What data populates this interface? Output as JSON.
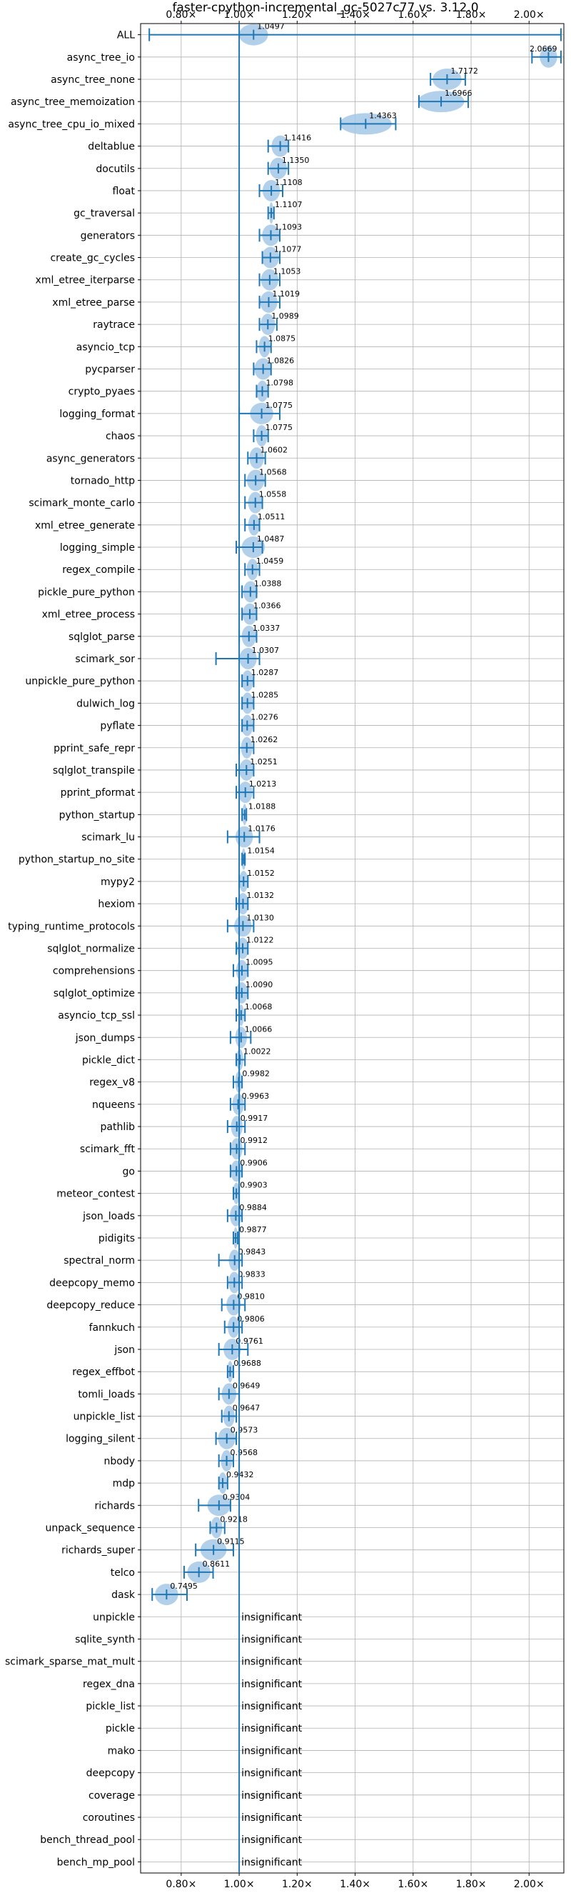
{
  "chart_data": {
    "type": "violin",
    "title": "faster-cpython-incremental_gc-5027c77 vs. 3.12.0",
    "xlabel": "",
    "ylabel": "",
    "xlim": [
      0.66,
      2.12
    ],
    "x_ticks": [
      0.8,
      1.0,
      1.2,
      1.4,
      1.6,
      1.8,
      2.0
    ],
    "x_tick_labels": [
      "0.80×",
      "1.00×",
      "1.20×",
      "1.40×",
      "1.60×",
      "1.80×",
      "2.00×"
    ],
    "reference_line": 1.0,
    "grid": true,
    "insignificant_label": "insignificant",
    "benchmarks": [
      {
        "name": "ALL",
        "value": 1.0497,
        "label": "1.0497",
        "low": 0.69,
        "high": 2.11,
        "spread": 0.05
      },
      {
        "name": "async_tree_io",
        "value": 2.0669,
        "label": "2.0669",
        "low": 2.01,
        "high": 2.11,
        "spread": 0.03
      },
      {
        "name": "async_tree_none",
        "value": 1.7172,
        "label": "1.7172",
        "low": 1.66,
        "high": 1.78,
        "spread": 0.05
      },
      {
        "name": "async_tree_memoization",
        "value": 1.6966,
        "label": "1.6966",
        "low": 1.62,
        "high": 1.79,
        "spread": 0.08
      },
      {
        "name": "async_tree_cpu_io_mixed",
        "value": 1.4363,
        "label": "1.4363",
        "low": 1.35,
        "high": 1.54,
        "spread": 0.09
      },
      {
        "name": "deltablue",
        "value": 1.1416,
        "label": "1.1416",
        "low": 1.1,
        "high": 1.17,
        "spread": 0.03
      },
      {
        "name": "docutils",
        "value": 1.135,
        "label": "1.1350",
        "low": 1.1,
        "high": 1.17,
        "spread": 0.03
      },
      {
        "name": "float",
        "value": 1.1108,
        "label": "1.1108",
        "low": 1.07,
        "high": 1.15,
        "spread": 0.03
      },
      {
        "name": "gc_traversal",
        "value": 1.1107,
        "label": "1.1107",
        "low": 1.1,
        "high": 1.12,
        "spread": 0.007
      },
      {
        "name": "generators",
        "value": 1.1093,
        "label": "1.1093",
        "low": 1.07,
        "high": 1.14,
        "spread": 0.03
      },
      {
        "name": "create_gc_cycles",
        "value": 1.1077,
        "label": "1.1077",
        "low": 1.08,
        "high": 1.14,
        "spread": 0.03
      },
      {
        "name": "xml_etree_iterparse",
        "value": 1.1053,
        "label": "1.1053",
        "low": 1.07,
        "high": 1.14,
        "spread": 0.03
      },
      {
        "name": "xml_etree_parse",
        "value": 1.1019,
        "label": "1.1019",
        "low": 1.07,
        "high": 1.14,
        "spread": 0.03
      },
      {
        "name": "raytrace",
        "value": 1.0989,
        "label": "1.0989",
        "low": 1.07,
        "high": 1.13,
        "spread": 0.025
      },
      {
        "name": "asyncio_tcp",
        "value": 1.0875,
        "label": "1.0875",
        "low": 1.06,
        "high": 1.11,
        "spread": 0.02
      },
      {
        "name": "pycparser",
        "value": 1.0826,
        "label": "1.0826",
        "low": 1.05,
        "high": 1.11,
        "spread": 0.03
      },
      {
        "name": "crypto_pyaes",
        "value": 1.0798,
        "label": "1.0798",
        "low": 1.06,
        "high": 1.1,
        "spread": 0.02
      },
      {
        "name": "logging_format",
        "value": 1.0775,
        "label": "1.0775",
        "low": 1.0,
        "high": 1.14,
        "spread": 0.04
      },
      {
        "name": "chaos",
        "value": 1.0775,
        "label": "1.0775",
        "low": 1.05,
        "high": 1.1,
        "spread": 0.02
      },
      {
        "name": "async_generators",
        "value": 1.0602,
        "label": "1.0602",
        "low": 1.03,
        "high": 1.09,
        "spread": 0.025
      },
      {
        "name": "tornado_http",
        "value": 1.0568,
        "label": "1.0568",
        "low": 1.02,
        "high": 1.09,
        "spread": 0.03
      },
      {
        "name": "scimark_monte_carlo",
        "value": 1.0558,
        "label": "1.0558",
        "low": 1.02,
        "high": 1.08,
        "spread": 0.025
      },
      {
        "name": "xml_etree_generate",
        "value": 1.0511,
        "label": "1.0511",
        "low": 1.02,
        "high": 1.07,
        "spread": 0.02
      },
      {
        "name": "logging_simple",
        "value": 1.0487,
        "label": "1.0487",
        "low": 0.99,
        "high": 1.08,
        "spread": 0.04
      },
      {
        "name": "regex_compile",
        "value": 1.0459,
        "label": "1.0459",
        "low": 1.02,
        "high": 1.07,
        "spread": 0.02
      },
      {
        "name": "pickle_pure_python",
        "value": 1.0388,
        "label": "1.0388",
        "low": 1.01,
        "high": 1.06,
        "spread": 0.025
      },
      {
        "name": "xml_etree_process",
        "value": 1.0366,
        "label": "1.0366",
        "low": 1.01,
        "high": 1.06,
        "spread": 0.025
      },
      {
        "name": "sqlglot_parse",
        "value": 1.0337,
        "label": "1.0337",
        "low": 1.0,
        "high": 1.06,
        "spread": 0.025
      },
      {
        "name": "scimark_sor",
        "value": 1.0307,
        "label": "1.0307",
        "low": 0.92,
        "high": 1.07,
        "spread": 0.03
      },
      {
        "name": "unpickle_pure_python",
        "value": 1.0287,
        "label": "1.0287",
        "low": 1.01,
        "high": 1.05,
        "spread": 0.02
      },
      {
        "name": "dulwich_log",
        "value": 1.0285,
        "label": "1.0285",
        "low": 1.01,
        "high": 1.05,
        "spread": 0.02
      },
      {
        "name": "pyflate",
        "value": 1.0276,
        "label": "1.0276",
        "low": 1.01,
        "high": 1.05,
        "spread": 0.02
      },
      {
        "name": "pprint_safe_repr",
        "value": 1.0262,
        "label": "1.0262",
        "low": 1.0,
        "high": 1.05,
        "spread": 0.02
      },
      {
        "name": "sqlglot_transpile",
        "value": 1.0251,
        "label": "1.0251",
        "low": 0.99,
        "high": 1.05,
        "spread": 0.025
      },
      {
        "name": "pprint_pformat",
        "value": 1.0213,
        "label": "1.0213",
        "low": 0.99,
        "high": 1.05,
        "spread": 0.025
      },
      {
        "name": "python_startup",
        "value": 1.0188,
        "label": "1.0188",
        "low": 1.01,
        "high": 1.025,
        "spread": 0.008
      },
      {
        "name": "scimark_lu",
        "value": 1.0176,
        "label": "1.0176",
        "low": 0.96,
        "high": 1.07,
        "spread": 0.03
      },
      {
        "name": "python_startup_no_site",
        "value": 1.0154,
        "label": "1.0154",
        "low": 1.01,
        "high": 1.02,
        "spread": 0.005
      },
      {
        "name": "mypy2",
        "value": 1.0152,
        "label": "1.0152",
        "low": 1.0,
        "high": 1.03,
        "spread": 0.015
      },
      {
        "name": "hexiom",
        "value": 1.0132,
        "label": "1.0132",
        "low": 0.99,
        "high": 1.03,
        "spread": 0.02
      },
      {
        "name": "typing_runtime_protocols",
        "value": 1.013,
        "label": "1.0130",
        "low": 0.96,
        "high": 1.05,
        "spread": 0.03
      },
      {
        "name": "sqlglot_normalize",
        "value": 1.0122,
        "label": "1.0122",
        "low": 0.99,
        "high": 1.03,
        "spread": 0.02
      },
      {
        "name": "comprehensions",
        "value": 1.0095,
        "label": "1.0095",
        "low": 0.98,
        "high": 1.03,
        "spread": 0.02
      },
      {
        "name": "sqlglot_optimize",
        "value": 1.009,
        "label": "1.0090",
        "low": 0.99,
        "high": 1.03,
        "spread": 0.02
      },
      {
        "name": "asyncio_tcp_ssl",
        "value": 1.0068,
        "label": "1.0068",
        "low": 0.99,
        "high": 1.02,
        "spread": 0.01
      },
      {
        "name": "json_dumps",
        "value": 1.0066,
        "label": "1.0066",
        "low": 0.97,
        "high": 1.04,
        "spread": 0.02
      },
      {
        "name": "pickle_dict",
        "value": 1.0022,
        "label": "1.0022",
        "low": 0.99,
        "high": 1.02,
        "spread": 0.012
      },
      {
        "name": "regex_v8",
        "value": 0.9982,
        "label": "0.9982",
        "low": 0.98,
        "high": 1.01,
        "spread": 0.012
      },
      {
        "name": "nqueens",
        "value": 0.9963,
        "label": "0.9963",
        "low": 0.97,
        "high": 1.02,
        "spread": 0.02
      },
      {
        "name": "pathlib",
        "value": 0.9917,
        "label": "0.9917",
        "low": 0.96,
        "high": 1.02,
        "spread": 0.02
      },
      {
        "name": "scimark_fft",
        "value": 0.9912,
        "label": "0.9912",
        "low": 0.97,
        "high": 1.02,
        "spread": 0.02
      },
      {
        "name": "go",
        "value": 0.9906,
        "label": "0.9906",
        "low": 0.97,
        "high": 1.01,
        "spread": 0.02
      },
      {
        "name": "meteor_contest",
        "value": 0.9903,
        "label": "0.9903",
        "low": 0.98,
        "high": 1.0,
        "spread": 0.012
      },
      {
        "name": "json_loads",
        "value": 0.9884,
        "label": "0.9884",
        "low": 0.96,
        "high": 1.01,
        "spread": 0.02
      },
      {
        "name": "pidigits",
        "value": 0.9877,
        "label": "0.9877",
        "low": 0.98,
        "high": 0.995,
        "spread": 0.006
      },
      {
        "name": "spectral_norm",
        "value": 0.9843,
        "label": "0.9843",
        "low": 0.93,
        "high": 1.01,
        "spread": 0.02
      },
      {
        "name": "deepcopy_memo",
        "value": 0.9833,
        "label": "0.9833",
        "low": 0.96,
        "high": 1.01,
        "spread": 0.02
      },
      {
        "name": "deepcopy_reduce",
        "value": 0.981,
        "label": "0.9810",
        "low": 0.94,
        "high": 1.02,
        "spread": 0.025
      },
      {
        "name": "fannkuch",
        "value": 0.9806,
        "label": "0.9806",
        "low": 0.95,
        "high": 1.01,
        "spread": 0.02
      },
      {
        "name": "json",
        "value": 0.9761,
        "label": "0.9761",
        "low": 0.93,
        "high": 1.03,
        "spread": 0.03
      },
      {
        "name": "regex_effbot",
        "value": 0.9688,
        "label": "0.9688",
        "low": 0.96,
        "high": 0.98,
        "spread": 0.01
      },
      {
        "name": "tomli_loads",
        "value": 0.9649,
        "label": "0.9649",
        "low": 0.93,
        "high": 1.0,
        "spread": 0.025
      },
      {
        "name": "unpickle_list",
        "value": 0.9647,
        "label": "0.9647",
        "low": 0.94,
        "high": 0.99,
        "spread": 0.02
      },
      {
        "name": "logging_silent",
        "value": 0.9573,
        "label": "0.9573",
        "low": 0.92,
        "high": 0.99,
        "spread": 0.03
      },
      {
        "name": "nbody",
        "value": 0.9568,
        "label": "0.9568",
        "low": 0.93,
        "high": 0.98,
        "spread": 0.02
      },
      {
        "name": "mdp",
        "value": 0.9432,
        "label": "0.9432",
        "low": 0.93,
        "high": 0.96,
        "spread": 0.015
      },
      {
        "name": "richards",
        "value": 0.9304,
        "label": "0.9304",
        "low": 0.86,
        "high": 0.97,
        "spread": 0.04
      },
      {
        "name": "unpack_sequence",
        "value": 0.9218,
        "label": "0.9218",
        "low": 0.9,
        "high": 0.95,
        "spread": 0.02
      },
      {
        "name": "richards_super",
        "value": 0.9115,
        "label": "0.9115",
        "low": 0.85,
        "high": 0.98,
        "spread": 0.045
      },
      {
        "name": "telco",
        "value": 0.8611,
        "label": "0.8611",
        "low": 0.81,
        "high": 0.91,
        "spread": 0.04
      },
      {
        "name": "dask",
        "value": 0.7495,
        "label": "0.7495",
        "low": 0.7,
        "high": 0.82,
        "spread": 0.04
      },
      {
        "name": "unpickle",
        "insignificant": true
      },
      {
        "name": "sqlite_synth",
        "insignificant": true
      },
      {
        "name": "scimark_sparse_mat_mult",
        "insignificant": true
      },
      {
        "name": "regex_dna",
        "insignificant": true
      },
      {
        "name": "pickle_list",
        "insignificant": true
      },
      {
        "name": "pickle",
        "insignificant": true
      },
      {
        "name": "mako",
        "insignificant": true
      },
      {
        "name": "deepcopy",
        "insignificant": true
      },
      {
        "name": "coverage",
        "insignificant": true
      },
      {
        "name": "coroutines",
        "insignificant": true
      },
      {
        "name": "bench_thread_pool",
        "insignificant": true
      },
      {
        "name": "bench_mp_pool",
        "insignificant": true
      }
    ],
    "colors": {
      "line": "#1f77b4",
      "violin": "#a6c8e8",
      "grid": "#b0b0b0",
      "text": "#000000"
    }
  }
}
